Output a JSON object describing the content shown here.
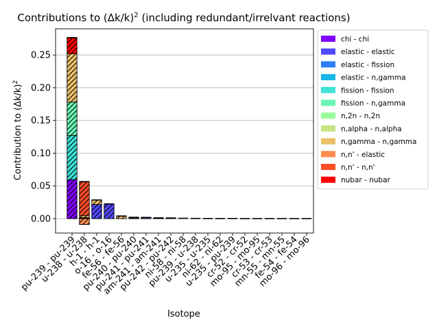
{
  "chart_data": {
    "type": "bar",
    "stacked": true,
    "title": "Contributions to (Δk/k)² (including redundant/irrelvant reactions)",
    "xlabel": "Isotope",
    "ylabel": "Contribution to (Δk/k)²",
    "ylim": [
      -0.022,
      0.29
    ],
    "yticks": [
      "0.00",
      "0.05",
      "0.10",
      "0.15",
      "0.20",
      "0.25"
    ],
    "ytick_values": [
      0,
      0.05,
      0.1,
      0.15,
      0.2,
      0.25
    ],
    "grid": "horizontal",
    "legend_position": "right",
    "categories": [
      "pu-239 - pu-239",
      "u-238 - u-238",
      "h-1 - h-1",
      "o-16 - o-16",
      "fe-56 - fe-56",
      "pu-240 - pu-240",
      "pu-241 - pu-241",
      "am-241 - am-241",
      "pu-242 - pu-242",
      "ni-58 - ni-58",
      "pu-239 - u-238",
      "u-235 - u-235",
      "ni-62 - ni-62",
      "u-235 - pu-239",
      "cr-52 - cr-52",
      "mo-95 - mo-95",
      "cr-53 - cr-53",
      "mn-55 - mn-55",
      "fe-54 - fe-54",
      "mo-96 - mo-96"
    ],
    "series": [
      {
        "name": "chi - chi",
        "color": "#8000ff",
        "values": [
          0.0595,
          0,
          0,
          0,
          0,
          0,
          0,
          0,
          0,
          0,
          0,
          0,
          0,
          0,
          0,
          0,
          0,
          0,
          0,
          0
        ]
      },
      {
        "name": "elastic - elastic",
        "color": "#5148fb",
        "values": [
          0,
          0,
          0.0215,
          0.0225,
          0,
          0,
          0.0015,
          0,
          0,
          0,
          0,
          0,
          0,
          0,
          0,
          0,
          0,
          0,
          0,
          0
        ]
      },
      {
        "name": "elastic - fission",
        "color": "#2c7ef7",
        "values": [
          0,
          0,
          0,
          0,
          0,
          0,
          0,
          0,
          0,
          0,
          0,
          0,
          0,
          0,
          0,
          0,
          0,
          0,
          0,
          0
        ]
      },
      {
        "name": "elastic - n,gamma",
        "color": "#17b6e6",
        "values": [
          0,
          0,
          0,
          0,
          0,
          0,
          0,
          0,
          0,
          0,
          0,
          0,
          0,
          0,
          0,
          0,
          0,
          0,
          0,
          0
        ]
      },
      {
        "name": "fission - fission",
        "color": "#3fe4d6",
        "values": [
          0.0675,
          0.001,
          0,
          0,
          0,
          0.0005,
          0.0003,
          0.0004,
          0,
          0,
          0,
          0,
          0,
          0,
          0,
          0,
          0,
          0,
          0,
          0
        ]
      },
      {
        "name": "fission - n,gamma",
        "color": "#6cf6b5",
        "values": [
          0.051,
          0,
          0,
          0,
          0,
          0,
          0,
          0,
          0,
          0,
          0,
          0,
          0,
          0,
          0,
          0,
          0,
          0,
          0,
          0
        ]
      },
      {
        "name": "n,2n - n,2n",
        "color": "#9afa9a",
        "values": [
          0,
          0.0005,
          0,
          0,
          0,
          0,
          0,
          0,
          0,
          0,
          0,
          0,
          0,
          0,
          0,
          0,
          0,
          0,
          0,
          0
        ]
      },
      {
        "name": "n,alpha - n,alpha",
        "color": "#c7e482",
        "values": [
          0,
          0,
          0,
          0,
          0,
          0,
          0,
          0,
          0,
          0,
          0,
          0,
          0,
          0,
          0,
          0,
          0,
          0,
          0,
          0
        ]
      },
      {
        "name": "n,gamma - n,gamma",
        "color": "#ecc06a",
        "values": [
          0.074,
          0.003,
          0.007,
          0,
          0.004,
          0.0015,
          0,
          0.0008,
          0.001,
          0,
          0,
          0,
          0,
          0,
          0,
          0,
          0,
          0,
          0,
          0
        ]
      },
      {
        "name": "n,n' - elastic",
        "color": "#ff8c4d",
        "values": [
          0,
          -0.009,
          0,
          0,
          0,
          0,
          0,
          0,
          0,
          0,
          0,
          0,
          0,
          0,
          0,
          0,
          0,
          0,
          0,
          0
        ]
      },
      {
        "name": "n,n' - n,n'",
        "color": "#ff4d27",
        "values": [
          0,
          0.052,
          0,
          0,
          0,
          0,
          0,
          0,
          0,
          0,
          0,
          0,
          0,
          0,
          0,
          0,
          0,
          0,
          0,
          0
        ]
      },
      {
        "name": "nubar - nubar",
        "color": "#ff0000",
        "values": [
          0.0245,
          0,
          0,
          0,
          0,
          0,
          0,
          0,
          0,
          0,
          0,
          0,
          0,
          0,
          0,
          0,
          0,
          0,
          0,
          0
        ]
      }
    ],
    "totals": [
      0.2765,
      0.0565,
      0.0285,
      0.0225,
      0.004,
      0.002,
      0.0018,
      0.0012,
      0.001,
      0.0005,
      0.0003,
      0.0002,
      0.0002,
      0.0002,
      0.0001,
      0.0001,
      0.0001,
      0.0001,
      0.0001,
      0.0001
    ]
  }
}
